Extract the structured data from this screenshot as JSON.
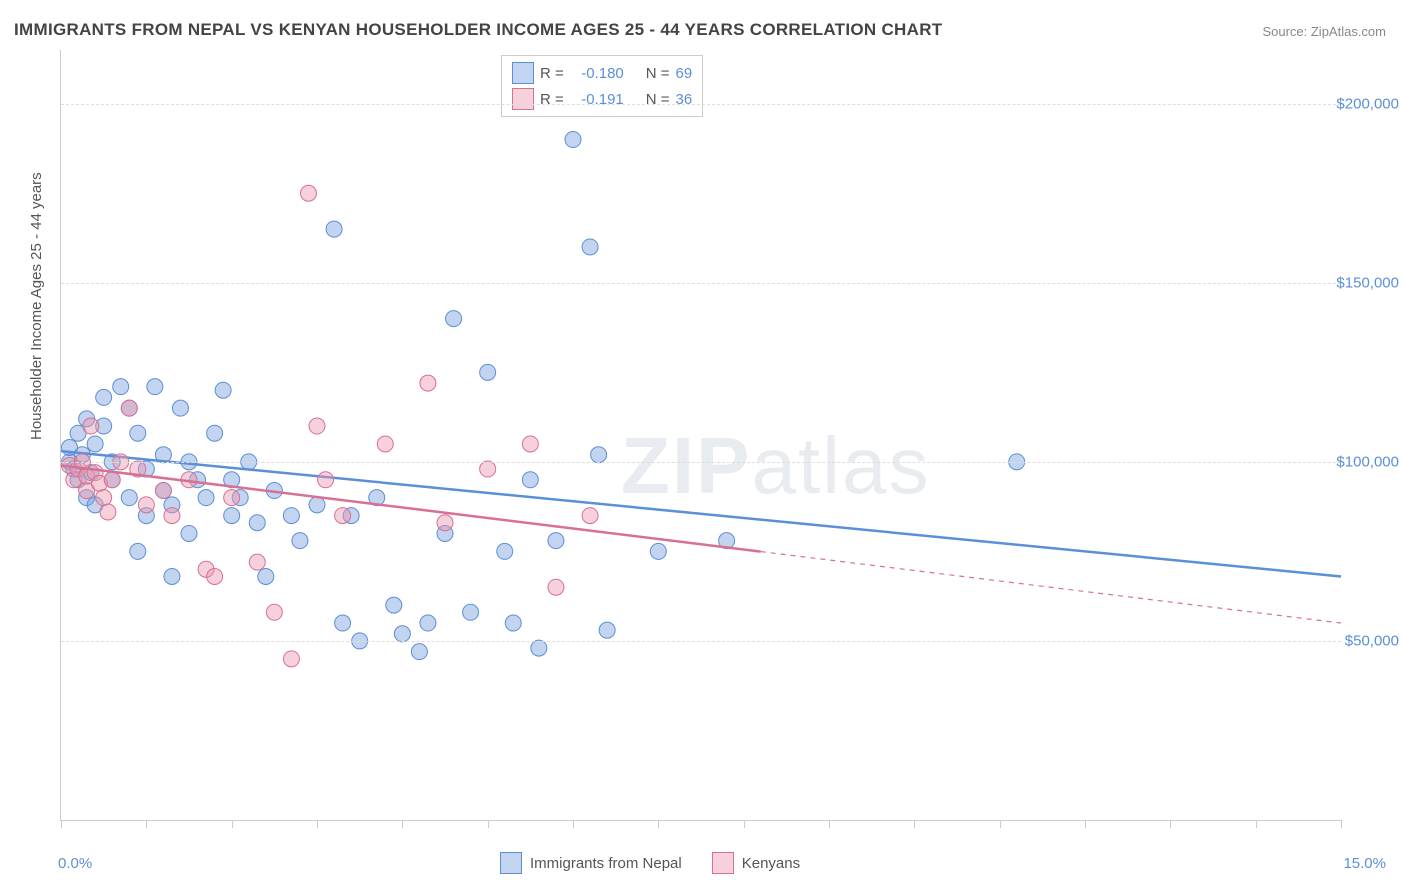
{
  "title": "IMMIGRANTS FROM NEPAL VS KENYAN HOUSEHOLDER INCOME AGES 25 - 44 YEARS CORRELATION CHART",
  "source_prefix": "Source: ",
  "source_name": "ZipAtlas.com",
  "watermark_a": "ZIP",
  "watermark_b": "atlas",
  "yaxis_title": "Householder Income Ages 25 - 44 years",
  "chart": {
    "type": "scatter",
    "xlim": [
      0,
      15
    ],
    "ylim": [
      0,
      215000
    ],
    "x_tick_step": 1,
    "xlabel_min": "0.0%",
    "xlabel_max": "15.0%",
    "y_gridlines": [
      50000,
      100000,
      150000,
      200000
    ],
    "y_labels": [
      "$50,000",
      "$100,000",
      "$150,000",
      "$200,000"
    ],
    "background_color": "#ffffff",
    "grid_color": "#dddddd",
    "axis_color": "#cccccc",
    "tick_label_color": "#5b8fd6",
    "marker_radius": 8,
    "marker_opacity": 0.45,
    "line_width": 2.5,
    "series": [
      {
        "key": "nepal",
        "label": "Immigrants from Nepal",
        "color": "#5b8fd6",
        "fill": "rgba(120,160,220,0.45)",
        "R": "-0.180",
        "N": "69",
        "trend": {
          "x1": 0,
          "y1": 103000,
          "x2": 15,
          "y2": 68000,
          "solid_until_x": 15
        },
        "points": [
          [
            0.1,
            100000
          ],
          [
            0.1,
            104000
          ],
          [
            0.15,
            98000
          ],
          [
            0.2,
            95000
          ],
          [
            0.2,
            108000
          ],
          [
            0.25,
            102000
          ],
          [
            0.3,
            90000
          ],
          [
            0.3,
            112000
          ],
          [
            0.35,
            97000
          ],
          [
            0.4,
            105000
          ],
          [
            0.4,
            88000
          ],
          [
            0.5,
            110000
          ],
          [
            0.5,
            118000
          ],
          [
            0.6,
            95000
          ],
          [
            0.6,
            100000
          ],
          [
            0.7,
            121000
          ],
          [
            0.8,
            115000
          ],
          [
            0.8,
            90000
          ],
          [
            0.9,
            108000
          ],
          [
            1.0,
            98000
          ],
          [
            1.0,
            85000
          ],
          [
            1.1,
            121000
          ],
          [
            1.2,
            92000
          ],
          [
            1.2,
            102000
          ],
          [
            1.3,
            88000
          ],
          [
            1.4,
            115000
          ],
          [
            1.5,
            100000
          ],
          [
            1.5,
            80000
          ],
          [
            1.6,
            95000
          ],
          [
            1.7,
            90000
          ],
          [
            1.8,
            108000
          ],
          [
            1.9,
            120000
          ],
          [
            2.0,
            95000
          ],
          [
            2.0,
            85000
          ],
          [
            2.1,
            90000
          ],
          [
            2.2,
            100000
          ],
          [
            2.3,
            83000
          ],
          [
            2.4,
            68000
          ],
          [
            2.5,
            92000
          ],
          [
            2.7,
            85000
          ],
          [
            2.8,
            78000
          ],
          [
            3.0,
            88000
          ],
          [
            3.2,
            165000
          ],
          [
            3.3,
            55000
          ],
          [
            3.4,
            85000
          ],
          [
            3.5,
            50000
          ],
          [
            3.7,
            90000
          ],
          [
            3.9,
            60000
          ],
          [
            4.0,
            52000
          ],
          [
            4.2,
            47000
          ],
          [
            4.3,
            55000
          ],
          [
            4.5,
            80000
          ],
          [
            4.6,
            140000
          ],
          [
            4.8,
            58000
          ],
          [
            5.0,
            125000
          ],
          [
            5.2,
            75000
          ],
          [
            5.3,
            55000
          ],
          [
            5.5,
            95000
          ],
          [
            5.6,
            48000
          ],
          [
            5.8,
            78000
          ],
          [
            6.0,
            190000
          ],
          [
            6.2,
            160000
          ],
          [
            6.3,
            102000
          ],
          [
            6.4,
            53000
          ],
          [
            7.0,
            75000
          ],
          [
            7.8,
            78000
          ],
          [
            11.2,
            100000
          ],
          [
            1.3,
            68000
          ],
          [
            0.9,
            75000
          ]
        ]
      },
      {
        "key": "kenyan",
        "label": "Kenyans",
        "color": "#d87093",
        "fill": "rgba(235,150,175,0.45)",
        "R": "-0.191",
        "N": "36",
        "trend": {
          "x1": 0,
          "y1": 99000,
          "x2": 15,
          "y2": 55000,
          "solid_until_x": 8.2
        },
        "points": [
          [
            0.1,
            99000
          ],
          [
            0.15,
            95000
          ],
          [
            0.2,
            98000
          ],
          [
            0.25,
            100000
          ],
          [
            0.3,
            92000
          ],
          [
            0.3,
            96000
          ],
          [
            0.35,
            110000
          ],
          [
            0.4,
            97000
          ],
          [
            0.45,
            94000
          ],
          [
            0.5,
            90000
          ],
          [
            0.55,
            86000
          ],
          [
            0.6,
            95000
          ],
          [
            0.7,
            100000
          ],
          [
            0.8,
            115000
          ],
          [
            0.9,
            98000
          ],
          [
            1.0,
            88000
          ],
          [
            1.2,
            92000
          ],
          [
            1.3,
            85000
          ],
          [
            1.5,
            95000
          ],
          [
            1.7,
            70000
          ],
          [
            1.8,
            68000
          ],
          [
            2.0,
            90000
          ],
          [
            2.3,
            72000
          ],
          [
            2.5,
            58000
          ],
          [
            2.7,
            45000
          ],
          [
            2.9,
            175000
          ],
          [
            3.0,
            110000
          ],
          [
            3.1,
            95000
          ],
          [
            3.3,
            85000
          ],
          [
            3.8,
            105000
          ],
          [
            4.3,
            122000
          ],
          [
            4.5,
            83000
          ],
          [
            5.0,
            98000
          ],
          [
            5.5,
            105000
          ],
          [
            5.8,
            65000
          ],
          [
            6.2,
            85000
          ]
        ]
      }
    ],
    "legend_top": {
      "R_label": "R =",
      "N_label": "N ="
    }
  }
}
